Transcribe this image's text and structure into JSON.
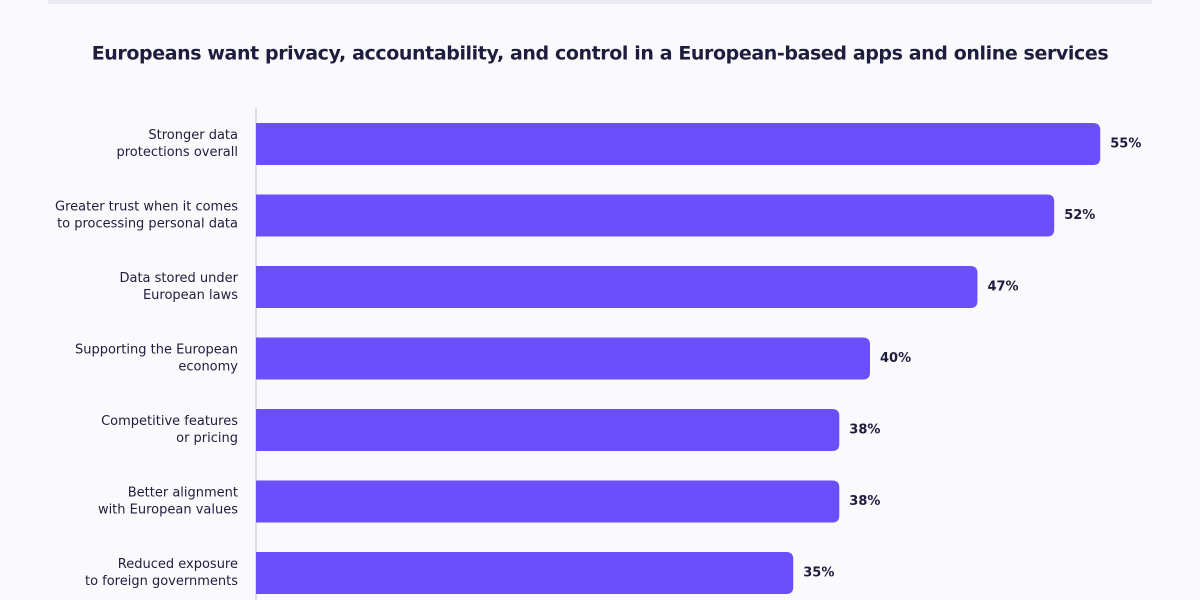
{
  "chart_data": {
    "type": "bar",
    "orientation": "horizontal",
    "title": "Europeans want privacy, accountability, and control in a European-based apps and online services",
    "categories": [
      [
        "Stronger data",
        "protections overall"
      ],
      [
        "Greater trust when it comes",
        "to processing personal data"
      ],
      [
        "Data stored under",
        "European laws"
      ],
      [
        "Supporting the European",
        "economy"
      ],
      [
        "Competitive features",
        "or pricing"
      ],
      [
        "Better alignment",
        "with European values"
      ],
      [
        "Reduced exposure",
        "to foreign governments"
      ]
    ],
    "values": [
      55,
      52,
      47,
      40,
      38,
      38,
      35
    ],
    "value_labels": [
      "55%",
      "52%",
      "47%",
      "40%",
      "38%",
      "38%",
      "35%"
    ],
    "color": "#6b4ffb"
  }
}
